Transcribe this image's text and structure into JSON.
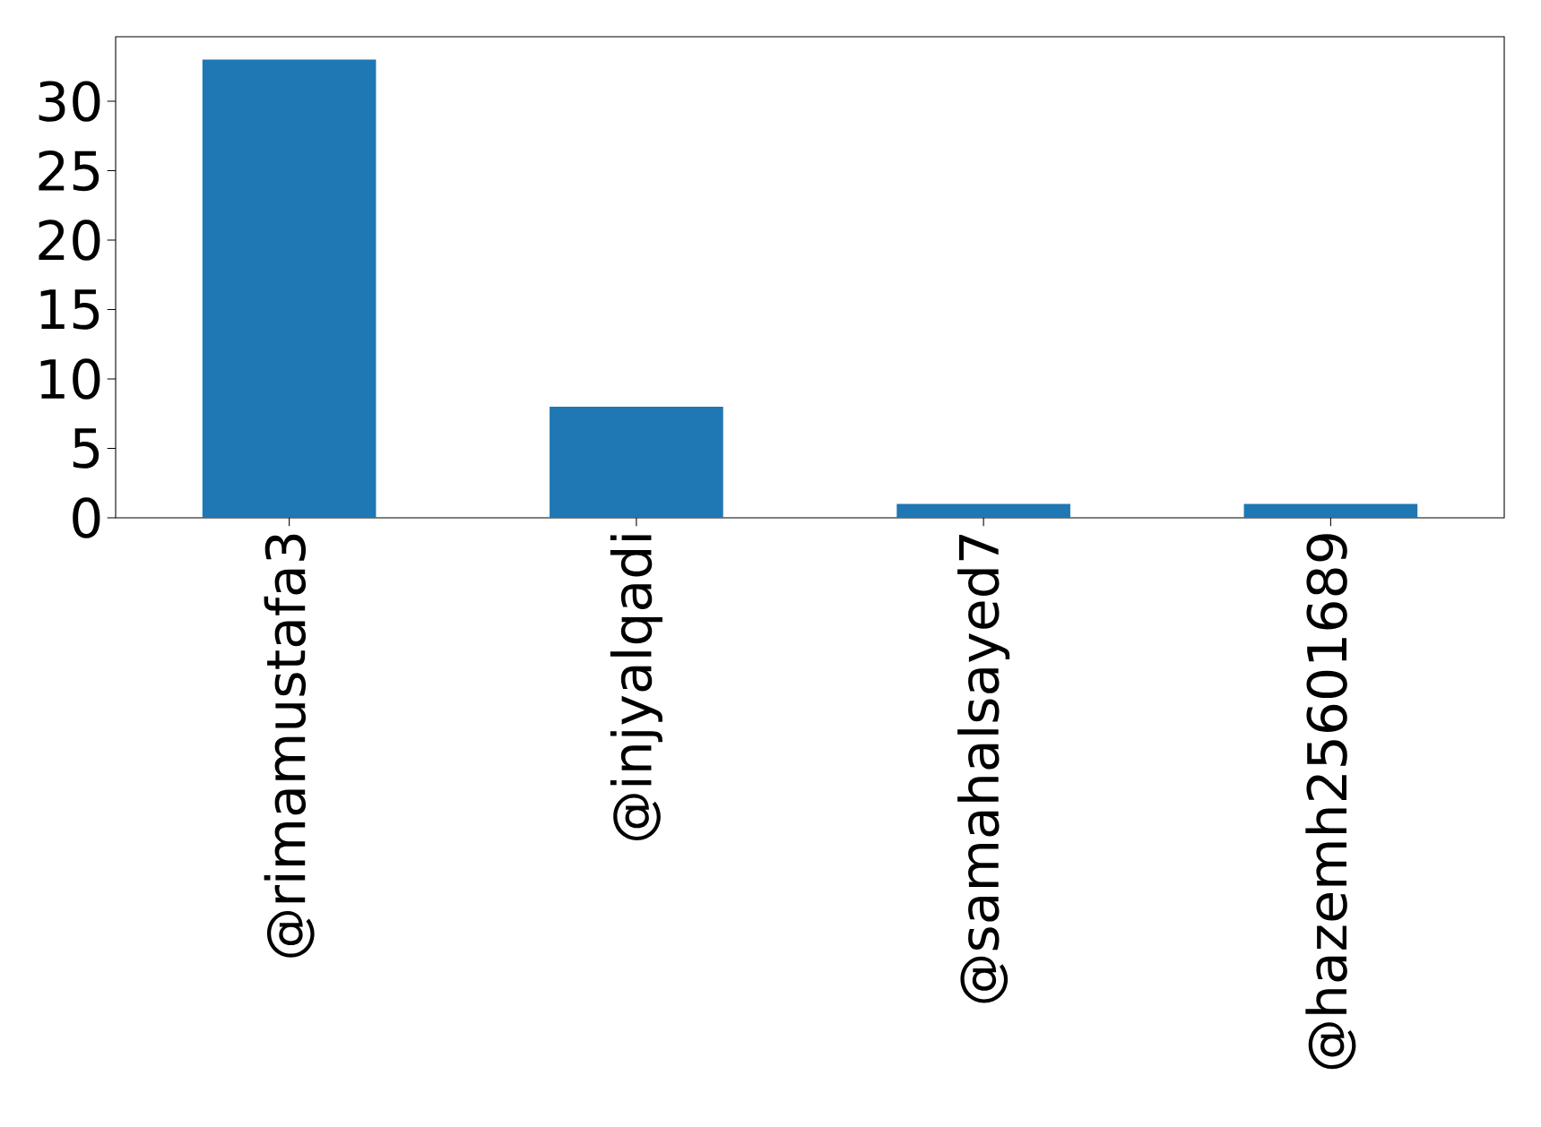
{
  "chart_data": {
    "type": "bar",
    "categories": [
      "@rimamustafa3",
      "@injyalqadi",
      "@samahalsayed7",
      "@hazemh25601689"
    ],
    "values": [
      33,
      8,
      1,
      1
    ],
    "color": "#1f77b4",
    "ylim": [
      0,
      34.65
    ],
    "yticks": [
      0,
      5,
      10,
      15,
      20,
      25,
      30
    ]
  }
}
